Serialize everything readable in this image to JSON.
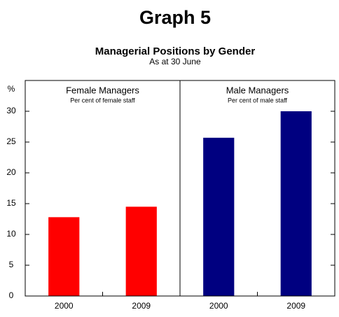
{
  "chart_data": {
    "type": "bar",
    "title": "Graph 5",
    "subtitle": "Managerial Positions by Gender",
    "note": "As at 30 June",
    "ylabel": "%",
    "ylim": [
      0,
      35
    ],
    "yticks": [
      0,
      5,
      10,
      15,
      20,
      25,
      30
    ],
    "panels": [
      {
        "title": "Female Managers",
        "subtitle": "Per cent of female staff",
        "categories": [
          "2000",
          "2009"
        ],
        "values": [
          12.8,
          14.5
        ],
        "color": "#ff0000"
      },
      {
        "title": "Male Managers",
        "subtitle": "Per cent of male staff",
        "categories": [
          "2000",
          "2009"
        ],
        "values": [
          25.7,
          30.0
        ],
        "color": "#000080"
      }
    ]
  }
}
